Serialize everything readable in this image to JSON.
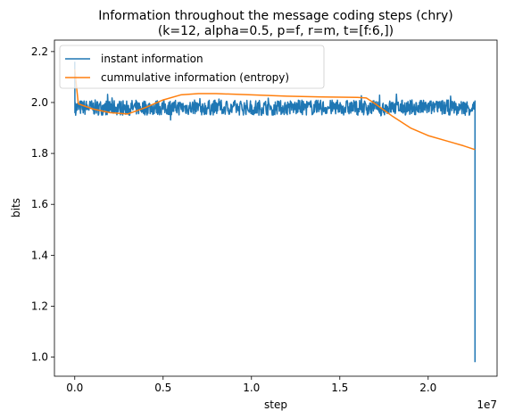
{
  "chart_data": {
    "type": "line",
    "title_line1": "Information throughout the message coding steps (chry)",
    "title_line2": "(k=12, alpha=0.5, p=f, r=m, t=[f:6,])",
    "xlabel": "step",
    "ylabel": "bits",
    "x_offset_text": "1e7",
    "xlim": [
      -0.115,
      2.39
    ],
    "ylim": [
      0.925,
      2.245
    ],
    "x_ticks": [
      0.0,
      0.5,
      1.0,
      1.5,
      2.0
    ],
    "x_tick_labels": [
      "0.0",
      "0.5",
      "1.0",
      "1.5",
      "2.0"
    ],
    "y_ticks": [
      1.0,
      1.2,
      1.4,
      1.6,
      1.8,
      2.0,
      2.2
    ],
    "y_tick_labels": [
      "1.0",
      "1.2",
      "1.4",
      "1.6",
      "1.8",
      "2.0",
      "2.2"
    ],
    "legend_position": "top-left",
    "grid": false,
    "series": [
      {
        "name": "instant information",
        "color": "#1f77b4",
        "x_range": [
          0.0,
          2.265
        ],
        "baseline": 1.98,
        "noise_amplitude": 0.03,
        "initial_values": [
          2.16,
          1.96,
          2.0
        ],
        "final_drop": 0.98
      },
      {
        "name": "cummulative information (entropy)",
        "color": "#ff7f0e",
        "x": [
          0.0,
          0.02,
          0.1,
          0.2,
          0.3,
          0.4,
          0.5,
          0.6,
          0.7,
          0.8,
          1.0,
          1.2,
          1.4,
          1.6,
          1.65,
          1.7,
          1.8,
          1.9,
          2.0,
          2.1,
          2.2,
          2.265
        ],
        "y": [
          2.13,
          1.995,
          1.975,
          1.96,
          1.955,
          1.98,
          2.01,
          2.03,
          2.035,
          2.035,
          2.03,
          2.025,
          2.022,
          2.02,
          2.018,
          1.995,
          1.945,
          1.9,
          1.87,
          1.85,
          1.83,
          1.815
        ]
      }
    ]
  }
}
